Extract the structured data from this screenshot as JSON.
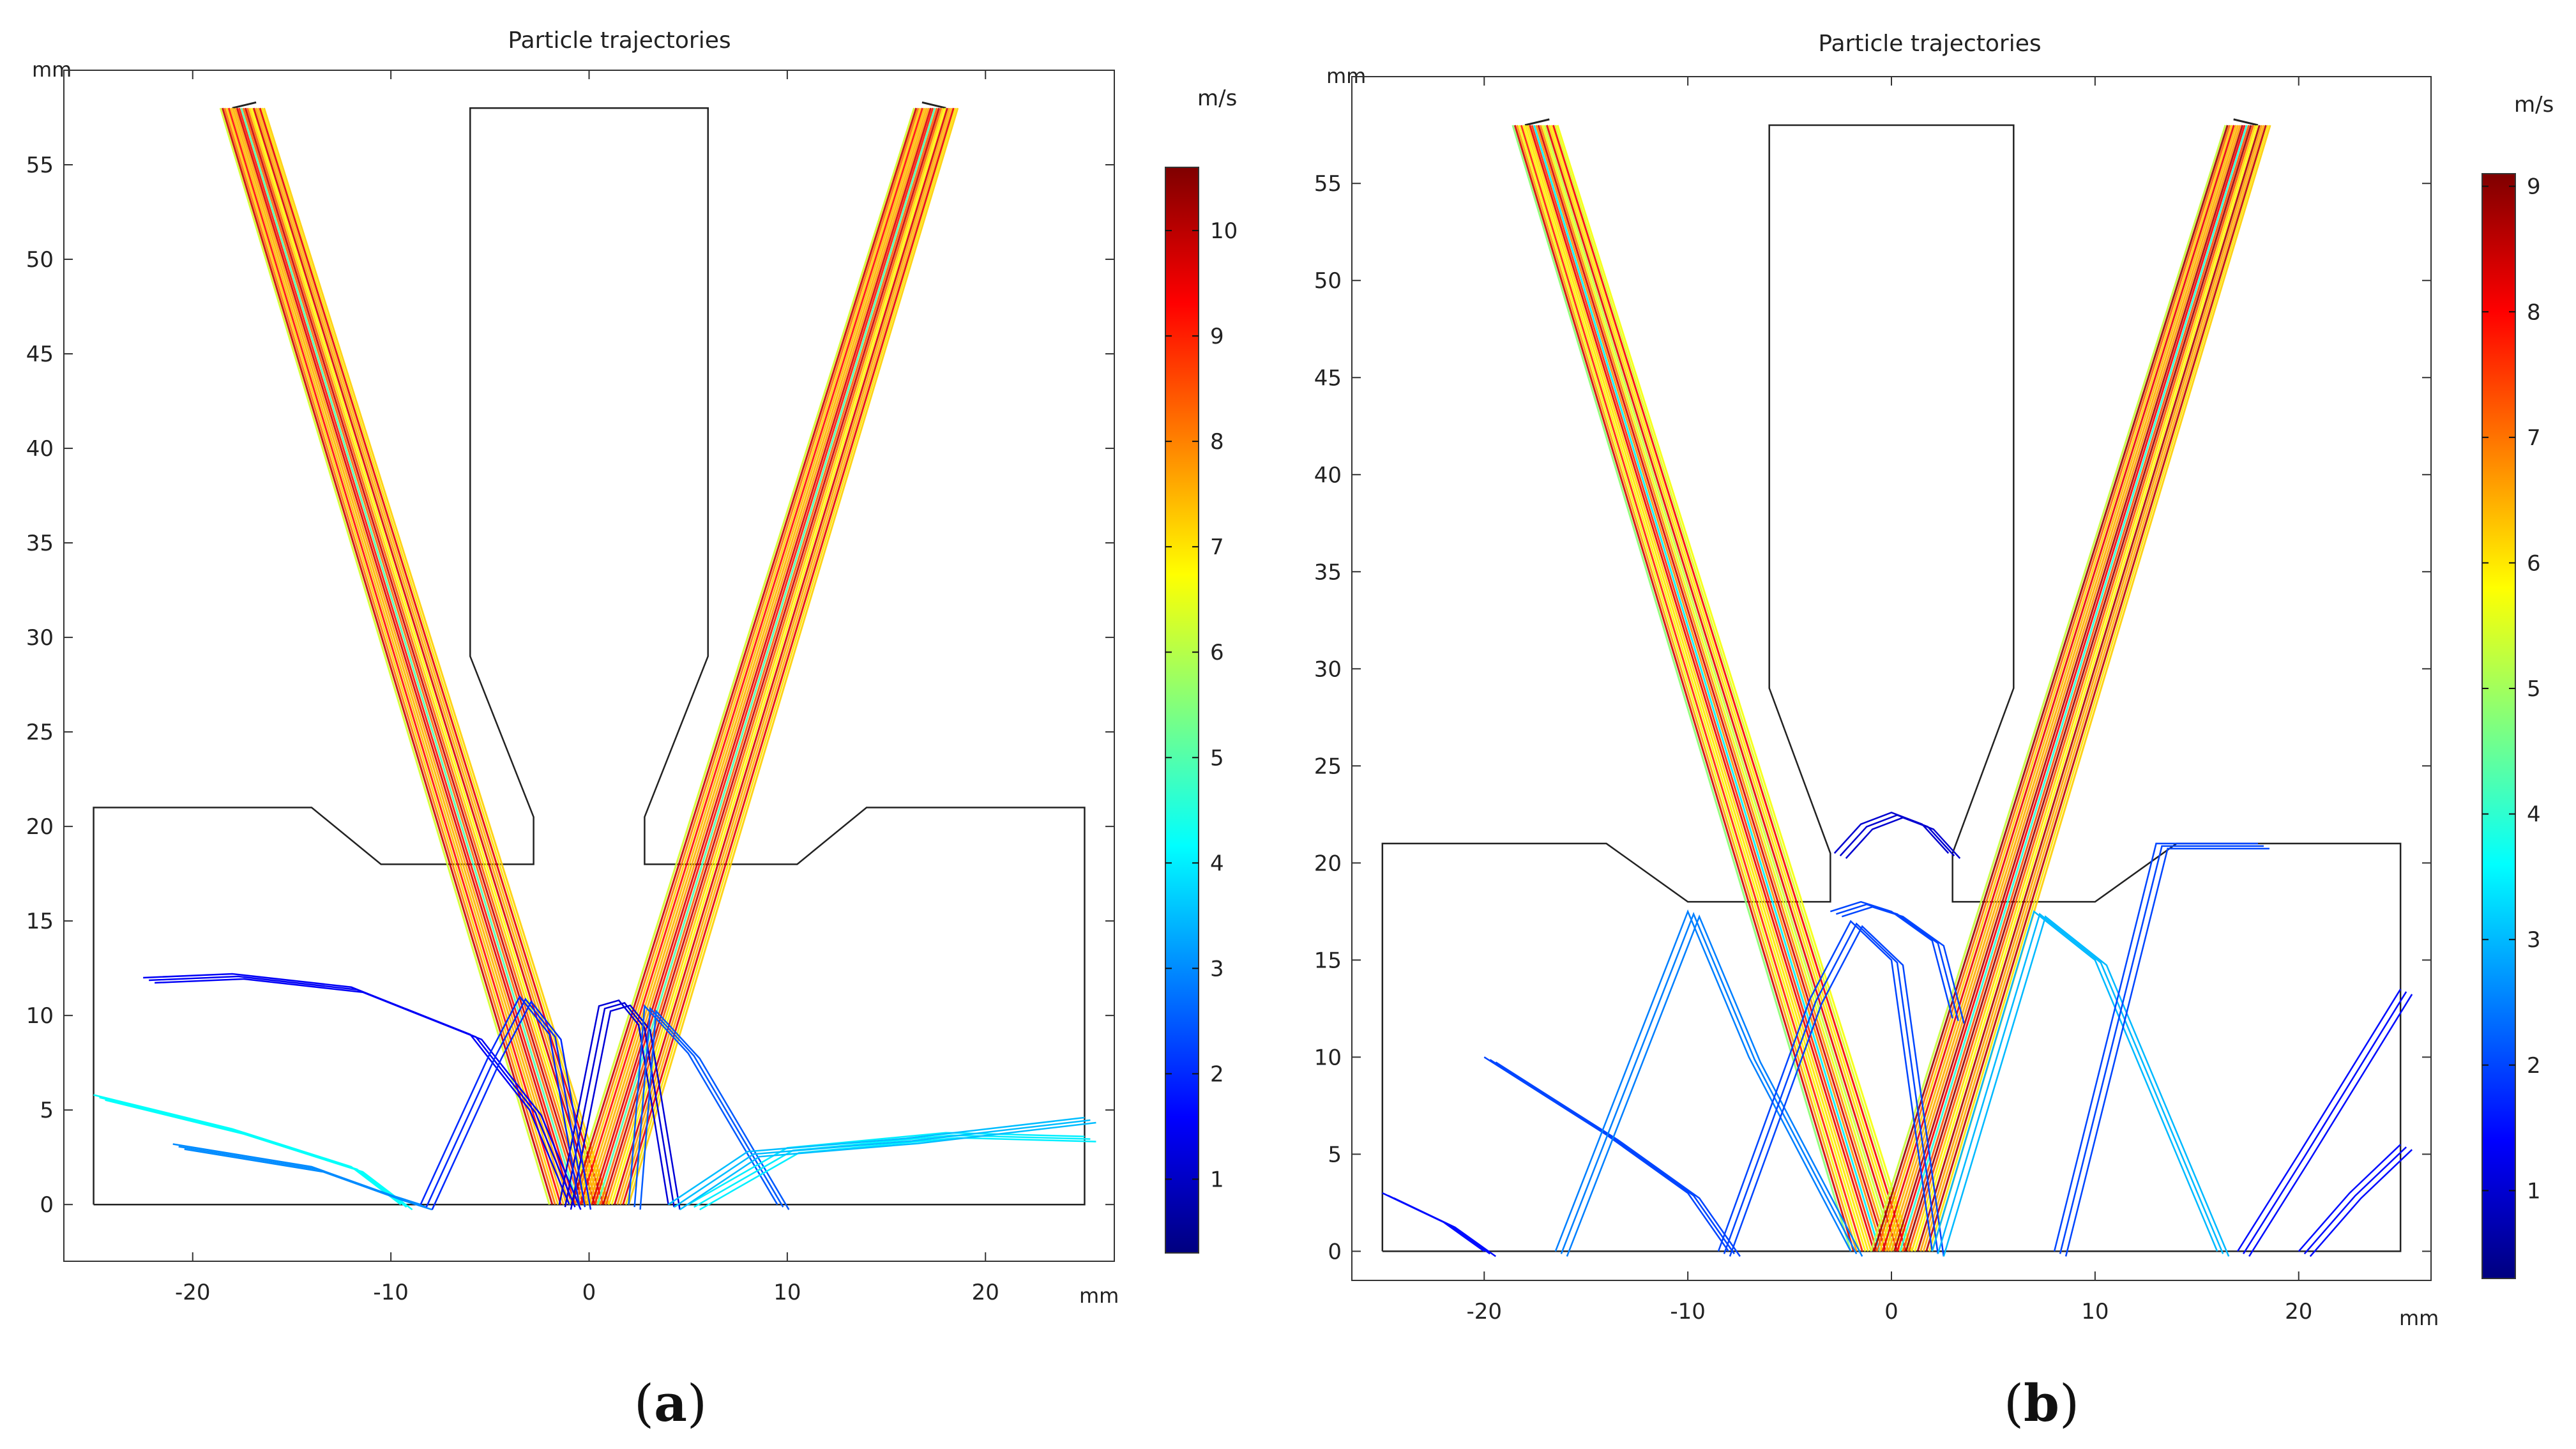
{
  "chart_data": [
    {
      "type": "line",
      "panel_label": "a",
      "title": "Particle trajectories",
      "xlabel": "mm",
      "ylabel": "mm",
      "xlim": [
        -26.5,
        26.5
      ],
      "ylim": [
        -3,
        60
      ],
      "x_ticks": [
        "-20",
        "-10",
        "0",
        "10",
        "20"
      ],
      "x_tick_values": [
        -20,
        -10,
        0,
        10,
        20
      ],
      "y_ticks": [
        "0",
        "5",
        "10",
        "15",
        "20",
        "25",
        "30",
        "35",
        "40",
        "45",
        "50",
        "55"
      ],
      "y_tick_values": [
        0,
        5,
        10,
        15,
        20,
        25,
        30,
        35,
        40,
        45,
        50,
        55
      ],
      "colorbar": {
        "unit": "m/s",
        "min": 0.3,
        "max": 10.6,
        "tick_labels": [
          "1",
          "2",
          "3",
          "4",
          "5",
          "6",
          "7",
          "8",
          "9",
          "10"
        ],
        "tick_values": [
          1,
          2,
          3,
          4,
          5,
          6,
          7,
          8,
          9,
          10
        ],
        "colormap": [
          "#00007f",
          "#0000ff",
          "#007fff",
          "#00ffff",
          "#7fff7f",
          "#ffff00",
          "#ff7f00",
          "#ff0000",
          "#7f0000"
        ]
      },
      "geometry": {
        "chamber": [
          [
            -25,
            0
          ],
          [
            25,
            0
          ],
          [
            25,
            21
          ],
          [
            14,
            21
          ],
          [
            10.5,
            18
          ],
          [
            2.8,
            18
          ],
          [
            2.8,
            20.5
          ],
          [
            6,
            29
          ],
          [
            6,
            58
          ],
          [
            -6,
            58
          ],
          [
            -6,
            29
          ],
          [
            -2.8,
            20.5
          ],
          [
            -2.8,
            18
          ],
          [
            -10.5,
            18
          ],
          [
            -14,
            21
          ],
          [
            -25,
            21
          ],
          [
            -25,
            0
          ]
        ],
        "nozzle_left": [
          [
            -18,
            58
          ],
          [
            -16.8,
            58.3
          ]
        ],
        "nozzle_right": [
          [
            16.8,
            58.3
          ],
          [
            18,
            58
          ]
        ]
      },
      "series": [
        {
          "name": "left jet",
          "speed": 8.5,
          "points": [
            [
              -17.5,
              58
            ],
            [
              -0.5,
              0
            ]
          ]
        },
        {
          "name": "right jet",
          "speed": 8.5,
          "points": [
            [
              17.5,
              58
            ],
            [
              0.5,
              0
            ]
          ]
        },
        {
          "name": "rebound 1",
          "speed": 1.5,
          "points": [
            [
              -22.5,
              12
            ],
            [
              -18,
              12.2
            ],
            [
              -12,
              11.5
            ],
            [
              -6,
              9
            ],
            [
              -3,
              5
            ],
            [
              -1,
              0
            ]
          ]
        },
        {
          "name": "rebound 2",
          "speed": 4.2,
          "points": [
            [
              -25,
              5.8
            ],
            [
              -18,
              4
            ],
            [
              -12,
              2
            ],
            [
              -9.5,
              0
            ]
          ]
        },
        {
          "name": "rebound 3",
          "speed": 3.0,
          "points": [
            [
              -21,
              3.2
            ],
            [
              -14,
              2
            ],
            [
              -10,
              0.5
            ],
            [
              -8.5,
              0
            ]
          ]
        },
        {
          "name": "rebound 4",
          "speed": 1.2,
          "points": [
            [
              -1.5,
              0
            ],
            [
              0.5,
              10.5
            ],
            [
              1.5,
              10.8
            ],
            [
              2.5,
              9.5
            ],
            [
              4,
              0
            ]
          ]
        },
        {
          "name": "rebound 5",
          "speed": 2.0,
          "points": [
            [
              -8.5,
              0
            ],
            [
              -5,
              8
            ],
            [
              -3.5,
              11
            ],
            [
              -2,
              9
            ],
            [
              -0.5,
              0
            ]
          ]
        },
        {
          "name": "rebound 6",
          "speed": 2.5,
          "points": [
            [
              2,
              0
            ],
            [
              2.8,
              10.5
            ],
            [
              5,
              8
            ],
            [
              9.5,
              0
            ]
          ]
        },
        {
          "name": "rebound 7",
          "speed": 4.0,
          "points": [
            [
              5,
              0
            ],
            [
              10,
              3
            ],
            [
              18,
              3.8
            ],
            [
              25,
              3.6
            ]
          ]
        },
        {
          "name": "rebound 8",
          "speed": 3.5,
          "points": [
            [
              4,
              0
            ],
            [
              8,
              2.8
            ],
            [
              16,
              3.5
            ],
            [
              25,
              4.6
            ]
          ]
        }
      ]
    },
    {
      "type": "line",
      "panel_label": "b",
      "title": "Particle trajectories",
      "xlabel": "mm",
      "ylabel": "mm",
      "xlim": [
        -26.5,
        26.5
      ],
      "ylim": [
        -1.5,
        60.5
      ],
      "x_ticks": [
        "-20",
        "-10",
        "0",
        "10",
        "20"
      ],
      "x_tick_values": [
        -20,
        -10,
        0,
        10,
        20
      ],
      "y_ticks": [
        "0",
        "5",
        "10",
        "15",
        "20",
        "25",
        "30",
        "35",
        "40",
        "45",
        "50",
        "55"
      ],
      "y_tick_values": [
        0,
        5,
        10,
        15,
        20,
        25,
        30,
        35,
        40,
        45,
        50,
        55
      ],
      "colorbar": {
        "unit": "m/s",
        "min": 0.3,
        "max": 9.1,
        "tick_labels": [
          "1",
          "2",
          "3",
          "4",
          "5",
          "6",
          "7",
          "8",
          "9"
        ],
        "tick_values": [
          1,
          2,
          3,
          4,
          5,
          6,
          7,
          8,
          9
        ],
        "colormap": [
          "#00007f",
          "#0000ff",
          "#007fff",
          "#00ffff",
          "#7fff7f",
          "#ffff00",
          "#ff7f00",
          "#ff0000",
          "#7f0000"
        ]
      },
      "geometry": {
        "chamber": [
          [
            -25,
            0
          ],
          [
            25,
            0
          ],
          [
            25,
            21
          ],
          [
            14,
            21
          ],
          [
            10,
            18
          ],
          [
            3,
            18
          ],
          [
            3,
            20.5
          ],
          [
            6,
            29
          ],
          [
            6,
            58
          ],
          [
            -6,
            58
          ],
          [
            -6,
            29
          ],
          [
            -3,
            20.5
          ],
          [
            -3,
            18
          ],
          [
            -10,
            18
          ],
          [
            -14,
            21
          ],
          [
            -25,
            21
          ],
          [
            -25,
            0
          ]
        ],
        "nozzle_left": [
          [
            -18,
            58
          ],
          [
            -16.8,
            58.3
          ]
        ],
        "nozzle_right": [
          [
            16.8,
            58.3
          ],
          [
            18,
            58
          ]
        ]
      },
      "series": [
        {
          "name": "left jet",
          "speed": 7.0,
          "points": [
            [
              -17.5,
              58
            ],
            [
              -0.5,
              0
            ]
          ]
        },
        {
          "name": "right jet",
          "speed": 7.5,
          "points": [
            [
              17.5,
              58
            ],
            [
              0.5,
              0
            ]
          ]
        },
        {
          "name": "arc",
          "speed": 1.0,
          "points": [
            [
              -2.8,
              20.5
            ],
            [
              -1.5,
              22
            ],
            [
              0,
              22.6
            ],
            [
              1.5,
              22
            ],
            [
              2.8,
              20.5
            ]
          ]
        },
        {
          "name": "rebound 1",
          "speed": 2.0,
          "points": [
            [
              -20,
              10
            ],
            [
              -14,
              6
            ],
            [
              -10,
              3
            ],
            [
              -8,
              0
            ]
          ]
        },
        {
          "name": "rebound 2",
          "speed": 1.5,
          "points": [
            [
              -25,
              3
            ],
            [
              -22,
              1.5
            ],
            [
              -20,
              0
            ]
          ]
        },
        {
          "name": "rebound 3",
          "speed": 2.5,
          "points": [
            [
              -16.5,
              0
            ],
            [
              -10,
              17.5
            ],
            [
              -7,
              10
            ],
            [
              -2,
              0
            ]
          ]
        },
        {
          "name": "rebound 4",
          "speed": 2.0,
          "points": [
            [
              -8.5,
              0
            ],
            [
              -4,
              13
            ],
            [
              -2,
              17
            ],
            [
              0,
              15
            ],
            [
              2,
              0
            ]
          ]
        },
        {
          "name": "rebound 5",
          "speed": 3.0,
          "points": [
            [
              2,
              0
            ],
            [
              7,
              17.5
            ],
            [
              10,
              15
            ],
            [
              16,
              0
            ]
          ]
        },
        {
          "name": "rebound 6",
          "speed": 2.0,
          "points": [
            [
              8,
              0
            ],
            [
              13,
              21
            ],
            [
              18,
              21
            ]
          ]
        },
        {
          "name": "rebound 7",
          "speed": 1.5,
          "points": [
            [
              17,
              0
            ],
            [
              20,
              5
            ],
            [
              25,
              13.5
            ]
          ]
        },
        {
          "name": "rebound 8",
          "speed": 1.5,
          "points": [
            [
              20,
              0
            ],
            [
              22.5,
              3
            ],
            [
              25,
              5.5
            ]
          ]
        },
        {
          "name": "rebound 9",
          "speed": 2.0,
          "points": [
            [
              -3,
              17.5
            ],
            [
              -1.5,
              18
            ],
            [
              0,
              17.5
            ],
            [
              2,
              16
            ],
            [
              3,
              12
            ]
          ]
        }
      ]
    }
  ]
}
